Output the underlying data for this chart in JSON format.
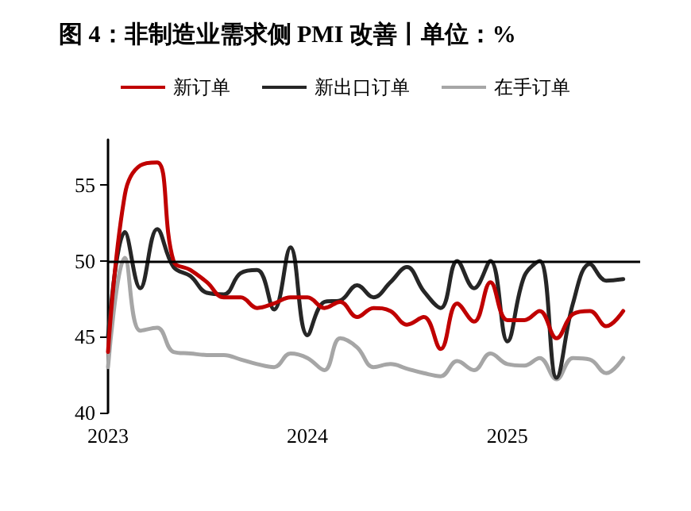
{
  "chart_data": {
    "type": "line",
    "title": "图 4：非制造业需求侧 PMI 改善丨单位：%",
    "x": [
      "2023-01",
      "2023-02",
      "2023-03",
      "2023-04",
      "2023-05",
      "2023-06",
      "2023-07",
      "2023-08",
      "2023-09",
      "2023-10",
      "2023-11",
      "2023-12",
      "2024-01",
      "2024-02",
      "2024-03",
      "2024-04",
      "2024-05",
      "2024-06",
      "2024-07",
      "2024-08",
      "2024-09",
      "2024-10",
      "2024-11",
      "2024-12",
      "2025-01",
      "2025-02",
      "2025-03",
      "2025-04",
      "2025-05",
      "2025-06",
      "2025-07",
      "2025-08"
    ],
    "series": [
      {
        "name": "新订单",
        "color": "#c00000",
        "values": [
          44.0,
          54.4,
          56.3,
          56.5,
          50.0,
          49.4,
          48.6,
          47.6,
          47.6,
          46.9,
          47.2,
          47.6,
          47.6,
          46.9,
          47.3,
          46.3,
          46.9,
          46.7,
          45.8,
          46.3,
          44.2,
          47.2,
          46.0,
          48.6,
          46.1,
          46.1,
          46.7,
          44.9,
          46.5,
          46.7,
          45.7,
          46.7
        ]
      },
      {
        "name": "新出口订单",
        "color": "#262626",
        "values": [
          45.0,
          51.9,
          48.2,
          52.1,
          49.6,
          49.0,
          47.9,
          47.8,
          49.2,
          49.4,
          46.8,
          50.9,
          45.1,
          47.3,
          47.4,
          48.4,
          47.6,
          48.6,
          49.6,
          48.0,
          46.9,
          50.0,
          48.2,
          50.0,
          44.7,
          49.0,
          50.0,
          42.3,
          47.2,
          49.8,
          48.7,
          48.8
        ]
      },
      {
        "name": "在手订单",
        "color": "#a6a6a6",
        "values": [
          43.0,
          50.2,
          45.4,
          45.6,
          44.0,
          43.9,
          43.8,
          43.8,
          43.5,
          43.2,
          43.0,
          43.9,
          43.6,
          42.8,
          44.9,
          44.3,
          43.0,
          43.2,
          42.9,
          42.6,
          42.4,
          43.4,
          42.8,
          43.9,
          43.2,
          43.1,
          43.6,
          42.2,
          43.6,
          43.5,
          42.6,
          43.6
        ]
      }
    ],
    "xlim": [
      "2023-01-01",
      "2025-09-01"
    ],
    "xticks": [
      {
        "value": "2023-01-01",
        "label": "2023"
      },
      {
        "value": "2024-01-01",
        "label": "2024"
      },
      {
        "value": "2025-01-01",
        "label": "2025"
      }
    ],
    "ylim": [
      40,
      58
    ],
    "yticks": [
      40,
      45,
      50,
      55
    ],
    "ref_lines": [
      {
        "axis": "y",
        "value": 50,
        "color": "#000000",
        "line_style": "solid"
      }
    ],
    "grid": false,
    "legend": "top",
    "marker": "none",
    "line_style": "solid"
  }
}
